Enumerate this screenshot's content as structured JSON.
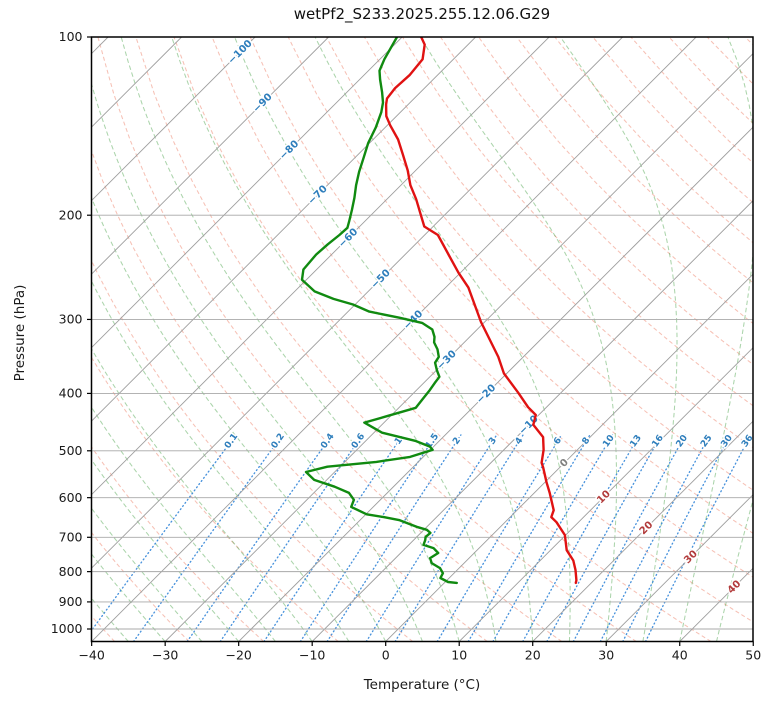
{
  "title": "wetPf2_S233.2025.255.12.06.G29",
  "axes": {
    "x": {
      "label": "Temperature (°C)",
      "ticks": [
        -40,
        -30,
        -20,
        -10,
        0,
        10,
        20,
        30,
        40,
        50
      ],
      "min": -40,
      "max": 50
    },
    "y": {
      "label": "Pressure (hPa)",
      "scale": "log",
      "ticks": [
        100,
        200,
        300,
        400,
        500,
        600,
        700,
        800,
        900,
        1000
      ],
      "min": 100,
      "max": 1050
    }
  },
  "background_lines": {
    "isotherms": {
      "min_C": -160,
      "max_C": 50,
      "step_C": 10,
      "color": "#9e9e9e",
      "label_values": [
        -100,
        -90,
        -80,
        -70,
        -60,
        -50,
        -40,
        -30,
        -20,
        -10,
        0,
        10,
        20,
        30,
        40
      ],
      "label_color_negative": "#2e7ebc",
      "label_color_zero": "#808080",
      "label_color_positive": "#b23b3b"
    },
    "pressure_gridlines": [
      100,
      200,
      300,
      400,
      500,
      600,
      700,
      800,
      900,
      1000
    ],
    "dry_adiabats": {
      "theta_min_K": 233,
      "theta_max_K": 473,
      "step_K": 10,
      "color": "#ef8f7a"
    },
    "moist_adiabats": {
      "t0_min_C": -40,
      "t0_max_C": 50,
      "step_C": 5,
      "color": "#5aab5a"
    },
    "mixing_ratio": {
      "values_g_kg": [
        0.1,
        0.2,
        0.4,
        0.6,
        1,
        1.5,
        2,
        3,
        4,
        6,
        8,
        10,
        13,
        16,
        20,
        25,
        30,
        36
      ],
      "color": "#3587d9",
      "label_color": "#2e7ebc"
    }
  },
  "chart_data": {
    "type": "line",
    "title": "wetPf2_S233.2025.255.12.06.G29",
    "xlabel": "Temperature (°C)",
    "ylabel": "Pressure (hPa)",
    "xlim": [
      -40,
      50
    ],
    "ylim": [
      1050,
      100
    ],
    "y_scale": "log",
    "skew_deg": 45,
    "series": [
      {
        "name": "temperature",
        "color": "#e01212",
        "width": 2.4,
        "points_p_T": [
          [
            100,
            -77.4
          ],
          [
            103,
            -75.9
          ],
          [
            109,
            -74.2
          ],
          [
            116,
            -73.8
          ],
          [
            122,
            -74.0
          ],
          [
            127,
            -73.7
          ],
          [
            130,
            -73.0
          ],
          [
            136,
            -71.4
          ],
          [
            141,
            -69.6
          ],
          [
            149,
            -66.6
          ],
          [
            158,
            -63.9
          ],
          [
            168,
            -61.1
          ],
          [
            178,
            -58.7
          ],
          [
            188,
            -56.0
          ],
          [
            200,
            -53.2
          ],
          [
            209,
            -51.2
          ],
          [
            216,
            -48.2
          ],
          [
            233,
            -44.1
          ],
          [
            250,
            -40.3
          ],
          [
            265,
            -36.9
          ],
          [
            303,
            -30.5
          ],
          [
            347,
            -23.4
          ],
          [
            370,
            -20.4
          ],
          [
            399,
            -15.8
          ],
          [
            422,
            -12.5
          ],
          [
            435,
            -10.4
          ],
          [
            452,
            -9.4
          ],
          [
            474,
            -6.4
          ],
          [
            498,
            -4.6
          ],
          [
            524,
            -3.1
          ],
          [
            533,
            -2.3
          ],
          [
            565,
            0.2
          ],
          [
            589,
            2.1
          ],
          [
            630,
            5.0
          ],
          [
            647,
            5.6
          ],
          [
            660,
            7.0
          ],
          [
            694,
            9.9
          ],
          [
            736,
            12.2
          ],
          [
            766,
            14.5
          ],
          [
            795,
            16.1
          ],
          [
            827,
            17.6
          ],
          [
            836,
            17.9
          ]
        ]
      },
      {
        "name": "dewpoint",
        "color": "#108a10",
        "width": 2.4,
        "points_p_T": [
          [
            100,
            -80.7
          ],
          [
            109,
            -79.4
          ],
          [
            114,
            -78.5
          ],
          [
            118,
            -77.2
          ],
          [
            124,
            -75.2
          ],
          [
            129,
            -73.7
          ],
          [
            134,
            -72.6
          ],
          [
            142,
            -71.3
          ],
          [
            151,
            -70.2
          ],
          [
            160,
            -68.8
          ],
          [
            169,
            -67.5
          ],
          [
            178,
            -66.1
          ],
          [
            187,
            -64.6
          ],
          [
            196,
            -63.3
          ],
          [
            205,
            -62.1
          ],
          [
            210,
            -61.5
          ],
          [
            216,
            -61.6
          ],
          [
            224,
            -61.9
          ],
          [
            233,
            -62.1
          ],
          [
            247,
            -61.8
          ],
          [
            257,
            -60.6
          ],
          [
            269,
            -57.3
          ],
          [
            277,
            -53.7
          ],
          [
            283,
            -50.3
          ],
          [
            291,
            -47.1
          ],
          [
            298,
            -42.2
          ],
          [
            304,
            -38.4
          ],
          [
            312,
            -36.1
          ],
          [
            321,
            -34.8
          ],
          [
            328,
            -34.1
          ],
          [
            337,
            -32.7
          ],
          [
            347,
            -31.5
          ],
          [
            355,
            -31.2
          ],
          [
            365,
            -30.0
          ],
          [
            375,
            -28.7
          ],
          [
            384,
            -28.5
          ],
          [
            395,
            -28.2
          ],
          [
            406,
            -28.0
          ],
          [
            423,
            -27.7
          ],
          [
            437,
            -30.5
          ],
          [
            448,
            -32.7
          ],
          [
            466,
            -28.9
          ],
          [
            481,
            -23.3
          ],
          [
            492,
            -20.5
          ],
          [
            498,
            -19.7
          ],
          [
            512,
            -21.8
          ],
          [
            522,
            -25.7
          ],
          [
            532,
            -31.7
          ],
          [
            543,
            -33.9
          ],
          [
            560,
            -31.7
          ],
          [
            575,
            -28.0
          ],
          [
            589,
            -25.2
          ],
          [
            605,
            -23.6
          ],
          [
            622,
            -23.0
          ],
          [
            640,
            -19.9
          ],
          [
            647,
            -17.2
          ],
          [
            655,
            -14.6
          ],
          [
            672,
            -11.4
          ],
          [
            680,
            -9.6
          ],
          [
            688,
            -8.7
          ],
          [
            699,
            -8.8
          ],
          [
            708,
            -8.4
          ],
          [
            721,
            -8.0
          ],
          [
            730,
            -6.2
          ],
          [
            744,
            -4.9
          ],
          [
            759,
            -5.3
          ],
          [
            774,
            -4.4
          ],
          [
            789,
            -2.6
          ],
          [
            805,
            -1.5
          ],
          [
            820,
            -1.2
          ],
          [
            833,
            0.4
          ],
          [
            836,
            1.7
          ]
        ]
      }
    ]
  }
}
